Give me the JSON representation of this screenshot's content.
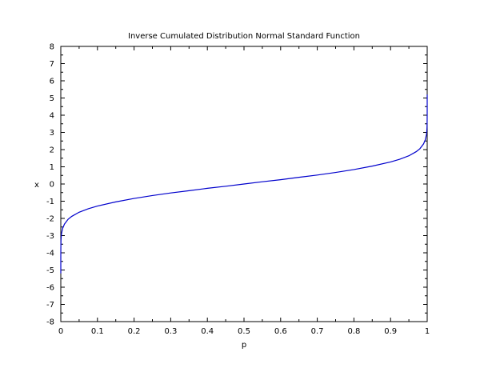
{
  "chart_data": {
    "type": "line",
    "title": "Inverse Cumulated Distribution Normal Standard Function",
    "xlabel": "p",
    "ylabel": "x",
    "xlim": [
      0,
      1
    ],
    "ylim": [
      -8,
      8
    ],
    "x_ticks": [
      0,
      0.1,
      0.2,
      0.3,
      0.4,
      0.5,
      0.6,
      0.7,
      0.8,
      0.9,
      1
    ],
    "x_tick_labels": [
      "0",
      "0.1",
      "0.2",
      "0.3",
      "0.4",
      "0.5",
      "0.6",
      "0.7",
      "0.8",
      "0.9",
      "1"
    ],
    "y_ticks": [
      -8,
      -7,
      -6,
      -5,
      -4,
      -3,
      -2,
      -1,
      0,
      1,
      2,
      3,
      4,
      5,
      6,
      7,
      8
    ],
    "y_tick_labels": [
      "-8",
      "-7",
      "-6",
      "-5",
      "-4",
      "-3",
      "-2",
      "-1",
      "0",
      "1",
      "2",
      "3",
      "4",
      "5",
      "6",
      "7",
      "8"
    ],
    "grid": false,
    "legend": "none",
    "line_color": "#0000cc",
    "series": [
      {
        "x": [
          1e-07,
          1e-06,
          1e-05,
          0.0001,
          0.0005,
          0.001,
          0.002,
          0.005,
          0.01,
          0.02,
          0.03,
          0.05,
          0.075,
          0.1,
          0.15,
          0.2,
          0.25,
          0.3,
          0.35,
          0.4,
          0.45,
          0.5,
          0.55,
          0.6,
          0.65,
          0.7,
          0.75,
          0.8,
          0.85,
          0.9,
          0.925,
          0.95,
          0.97,
          0.98,
          0.99,
          0.995,
          0.998,
          0.999,
          0.9995,
          0.9999,
          0.99999,
          0.999999,
          0.9999999
        ],
        "y": [
          -5.2,
          -4.75,
          -4.26,
          -3.72,
          -3.29,
          -3.09,
          -2.88,
          -2.58,
          -2.33,
          -2.05,
          -1.88,
          -1.64,
          -1.44,
          -1.28,
          -1.04,
          -0.84,
          -0.67,
          -0.52,
          -0.39,
          -0.25,
          -0.13,
          0.0,
          0.13,
          0.25,
          0.39,
          0.52,
          0.67,
          0.84,
          1.04,
          1.28,
          1.44,
          1.64,
          1.88,
          2.05,
          2.33,
          2.58,
          2.88,
          3.09,
          3.29,
          3.72,
          4.26,
          4.75,
          5.2
        ]
      }
    ]
  }
}
